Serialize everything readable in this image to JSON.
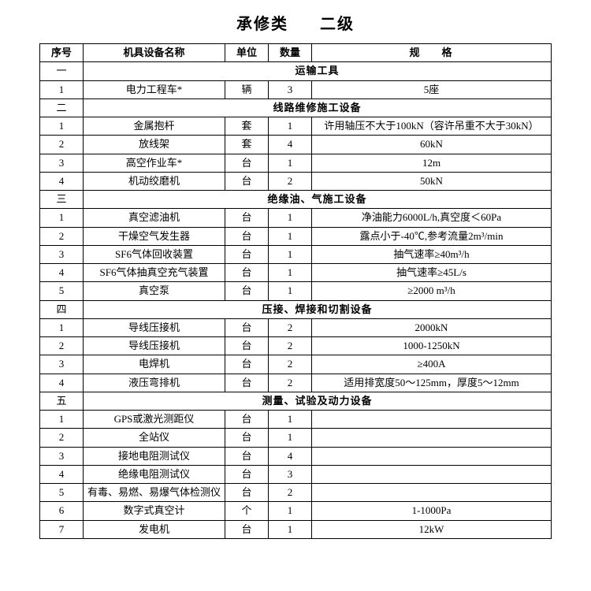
{
  "title_left": "承修类",
  "title_right": "二级",
  "headers": {
    "col1": "序号",
    "col2": "机具设备名称",
    "col3": "单位",
    "col4": "数量",
    "col5": "规格"
  },
  "sections": [
    {
      "num": "一",
      "title": "运输工具",
      "rows": [
        {
          "n": "1",
          "name": "电力工程车*",
          "unit": "辆",
          "qty": "3",
          "spec": "5座"
        }
      ]
    },
    {
      "num": "二",
      "title": "线路维修施工设备",
      "rows": [
        {
          "n": "1",
          "name": "金属抱杆",
          "unit": "套",
          "qty": "1",
          "spec": "许用轴压不大于100kN（容许吊重不大于30kN）"
        },
        {
          "n": "2",
          "name": "放线架",
          "unit": "套",
          "qty": "4",
          "spec": "60kN"
        },
        {
          "n": "3",
          "name": "高空作业车*",
          "unit": "台",
          "qty": "1",
          "spec": "12m"
        },
        {
          "n": "4",
          "name": "机动绞磨机",
          "unit": "台",
          "qty": "2",
          "spec": "50kN"
        }
      ]
    },
    {
      "num": "三",
      "title": "绝缘油、气施工设备",
      "rows": [
        {
          "n": "1",
          "name": "真空滤油机",
          "unit": "台",
          "qty": "1",
          "spec": "净油能力6000L/h,真空度＜60Pa"
        },
        {
          "n": "2",
          "name": "干燥空气发生器",
          "unit": "台",
          "qty": "1",
          "spec": "露点小于-40℃,参考流量2m³/min"
        },
        {
          "n": "3",
          "name": "SF6气体回收装置",
          "unit": "台",
          "qty": "1",
          "spec": "抽气速率≥40m³/h"
        },
        {
          "n": "4",
          "name": "SF6气体抽真空充气装置",
          "unit": "台",
          "qty": "1",
          "spec": "抽气速率≥45L/s"
        },
        {
          "n": "5",
          "name": "真空泵",
          "unit": "台",
          "qty": "1",
          "spec": "≥2000 m³/h"
        }
      ]
    },
    {
      "num": "四",
      "title": "压接、焊接和切割设备",
      "rows": [
        {
          "n": "1",
          "name": "导线压接机",
          "unit": "台",
          "qty": "2",
          "spec": "2000kN"
        },
        {
          "n": "2",
          "name": "导线压接机",
          "unit": "台",
          "qty": "2",
          "spec": "1000-1250kN"
        },
        {
          "n": "3",
          "name": "电焊机",
          "unit": "台",
          "qty": "2",
          "spec": "≥400A"
        },
        {
          "n": "4",
          "name": "液压弯排机",
          "unit": "台",
          "qty": "2",
          "spec": "适用排宽度50～125mm，厚度5～12mm"
        }
      ]
    },
    {
      "num": "五",
      "title": "测量、试验及动力设备",
      "rows": [
        {
          "n": "1",
          "name": "GPS或激光测距仪",
          "unit": "台",
          "qty": "1",
          "spec": ""
        },
        {
          "n": "2",
          "name": "全站仪",
          "unit": "台",
          "qty": "1",
          "spec": ""
        },
        {
          "n": "3",
          "name": "接地电阻测试仪",
          "unit": "台",
          "qty": "4",
          "spec": ""
        },
        {
          "n": "4",
          "name": "绝缘电阻测试仪",
          "unit": "台",
          "qty": "3",
          "spec": ""
        },
        {
          "n": "5",
          "name": "有毒、易燃、易爆气体检测仪",
          "unit": "台",
          "qty": "2",
          "spec": ""
        },
        {
          "n": "6",
          "name": "数字式真空计",
          "unit": "个",
          "qty": "1",
          "spec": "1-1000Pa"
        },
        {
          "n": "7",
          "name": "发电机",
          "unit": "台",
          "qty": "1",
          "spec": "12kW"
        }
      ]
    }
  ]
}
